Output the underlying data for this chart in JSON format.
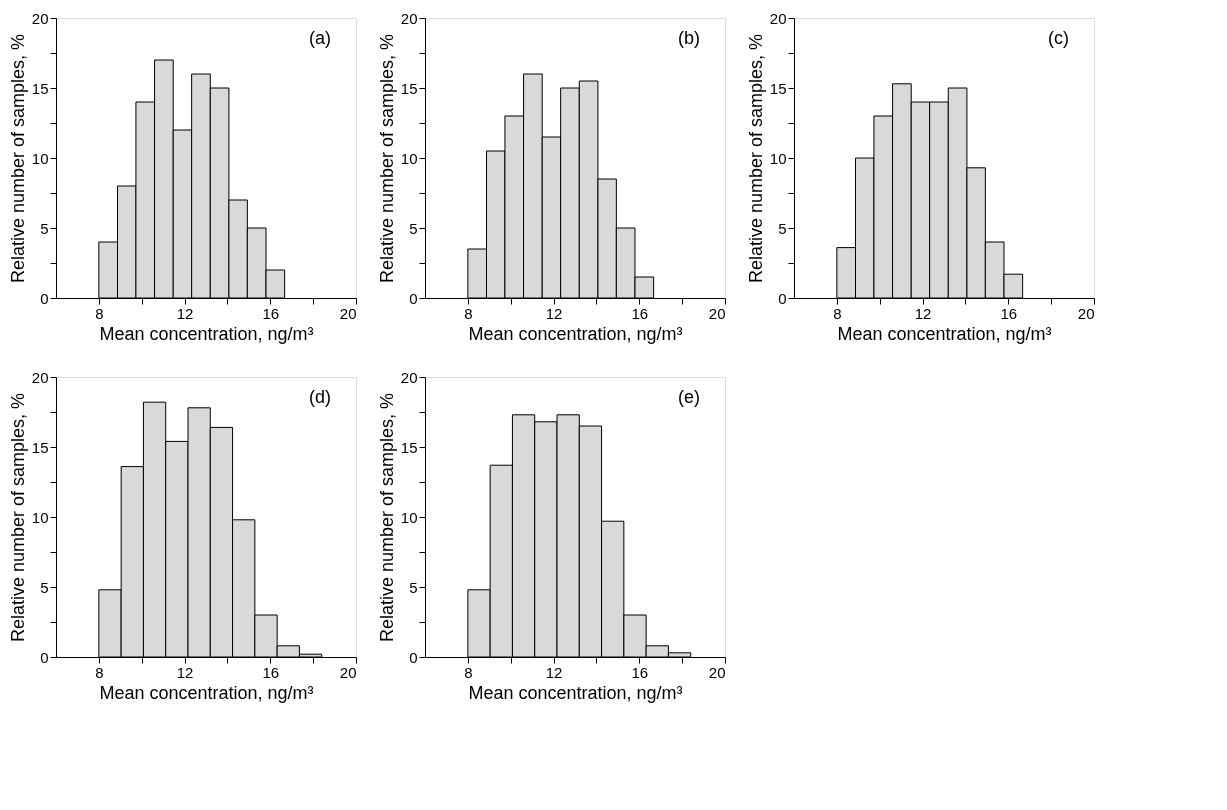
{
  "chart_data": [
    {
      "type": "histogram",
      "xlabel": "Mean concentration, ng/m³",
      "ylabel": "Relative number of samples, %",
      "annotations": [
        "(a)"
      ],
      "color": "#d9d9d9",
      "grid": false,
      "bins": [
        8,
        8.87,
        9.73,
        10.6,
        11.47,
        12.33,
        13.2,
        14.07,
        14.93,
        15.8,
        16.67
      ],
      "values": [
        4,
        8,
        14,
        17,
        12,
        16,
        15,
        7,
        5,
        2
      ],
      "xlim": [
        6,
        20
      ],
      "xticks": [
        8,
        {
          "value": 10,
          "label": null
        },
        12,
        {
          "value": 14,
          "label": null
        },
        16,
        {
          "value": 18,
          "label": null
        },
        20
      ],
      "ylim": [
        0,
        20
      ],
      "yticks": [
        0,
        {
          "value": 2.5,
          "label": null
        },
        5,
        {
          "value": 7.5,
          "label": null
        },
        10,
        {
          "value": 12.5,
          "label": null
        },
        15,
        {
          "value": 17.5,
          "label": null
        },
        20
      ]
    },
    {
      "type": "histogram",
      "xlabel": "Mean concentration, ng/m³",
      "ylabel": "Relative number of samples, %",
      "annotations": [
        "(b)"
      ],
      "color": "#d9d9d9",
      "grid": false,
      "bins": [
        8,
        8.87,
        9.73,
        10.6,
        11.47,
        12.33,
        13.2,
        14.07,
        14.93,
        15.8,
        16.67
      ],
      "values": [
        3.5,
        10.5,
        13,
        16,
        11.5,
        15,
        15.5,
        8.5,
        5,
        1.5
      ],
      "xlim": [
        6,
        20
      ],
      "xticks": [
        8,
        {
          "value": 10,
          "label": null
        },
        12,
        {
          "value": 14,
          "label": null
        },
        16,
        {
          "value": 18,
          "label": null
        },
        20
      ],
      "ylim": [
        0,
        20
      ],
      "yticks": [
        0,
        {
          "value": 2.5,
          "label": null
        },
        5,
        {
          "value": 7.5,
          "label": null
        },
        10,
        {
          "value": 12.5,
          "label": null
        },
        15,
        {
          "value": 17.5,
          "label": null
        },
        20
      ]
    },
    {
      "type": "histogram",
      "xlabel": "Mean concentration, ng/m³",
      "ylabel": "Relative number of samples, %",
      "annotations": [
        "(c)"
      ],
      "color": "#d9d9d9",
      "grid": false,
      "bins": [
        8,
        8.87,
        9.73,
        10.6,
        11.47,
        12.33,
        13.2,
        14.07,
        14.93,
        15.8,
        16.67
      ],
      "values": [
        3.6,
        10,
        13,
        15.3,
        14,
        14,
        15,
        9.3,
        4,
        1.7
      ],
      "xlim": [
        6,
        20
      ],
      "xticks": [
        8,
        {
          "value": 10,
          "label": null
        },
        12,
        {
          "value": 14,
          "label": null
        },
        16,
        {
          "value": 18,
          "label": null
        },
        20
      ],
      "ylim": [
        0,
        20
      ],
      "yticks": [
        0,
        {
          "value": 2.5,
          "label": null
        },
        5,
        {
          "value": 7.5,
          "label": null
        },
        10,
        {
          "value": 12.5,
          "label": null
        },
        15,
        {
          "value": 17.5,
          "label": null
        },
        20
      ]
    },
    {
      "type": "histogram",
      "xlabel": "Mean concentration, ng/m³",
      "ylabel": "Relative number of samples, %",
      "annotations": [
        "(d)"
      ],
      "color": "#d9d9d9",
      "grid": false,
      "bins": [
        8,
        9.04,
        10.08,
        11.12,
        12.16,
        13.2,
        14.24,
        15.28,
        16.32,
        17.36,
        18.4
      ],
      "values": [
        4.8,
        13.6,
        18.2,
        15.4,
        17.8,
        16.4,
        9.8,
        3,
        0.8,
        0.2
      ],
      "xlim": [
        6,
        20
      ],
      "xticks": [
        8,
        {
          "value": 10,
          "label": null
        },
        12,
        {
          "value": 14,
          "label": null
        },
        16,
        {
          "value": 18,
          "label": null
        },
        20
      ],
      "ylim": [
        0,
        20
      ],
      "yticks": [
        0,
        {
          "value": 2.5,
          "label": null
        },
        5,
        {
          "value": 7.5,
          "label": null
        },
        10,
        {
          "value": 12.5,
          "label": null
        },
        15,
        {
          "value": 17.5,
          "label": null
        },
        20
      ]
    },
    {
      "type": "histogram",
      "xlabel": "Mean concentration, ng/m³",
      "ylabel": "Relative number of samples, %",
      "annotations": [
        "(e)"
      ],
      "color": "#d9d9d9",
      "grid": false,
      "bins": [
        8,
        9.04,
        10.08,
        11.12,
        12.16,
        13.2,
        14.24,
        15.28,
        16.32,
        17.36,
        18.4
      ],
      "values": [
        4.8,
        13.7,
        17.3,
        16.8,
        17.3,
        16.5,
        9.7,
        3,
        0.8,
        0.3
      ],
      "xlim": [
        6,
        20
      ],
      "xticks": [
        8,
        {
          "value": 10,
          "label": null
        },
        12,
        {
          "value": 14,
          "label": null
        },
        16,
        {
          "value": 18,
          "label": null
        },
        20
      ],
      "ylim": [
        0,
        20
      ],
      "yticks": [
        0,
        {
          "value": 2.5,
          "label": null
        },
        5,
        {
          "value": 7.5,
          "label": null
        },
        10,
        {
          "value": 12.5,
          "label": null
        },
        15,
        {
          "value": 17.5,
          "label": null
        },
        20
      ]
    }
  ]
}
